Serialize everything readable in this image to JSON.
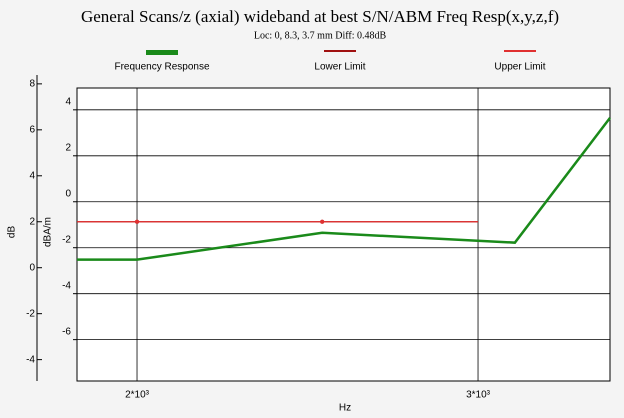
{
  "chart_data": {
    "type": "line",
    "title": "General Scans/z (axial) wideband at best S/N/ABM Freq Resp(x,y,z,f)",
    "subtitle": "Loc: 0, 8.3, 3.7 mm Diff: 0.48dB",
    "xlabel": "Hz",
    "ylabel": "dBA/m",
    "y2label": "dB",
    "xlim": [
      1824,
      3387
    ],
    "xticks": [
      {
        "value": 2000,
        "label": "2*10³"
      },
      {
        "value": 3000,
        "label": "3*10³"
      }
    ],
    "ylim": [
      -7.8,
      4.95
    ],
    "yticks": [
      4,
      2,
      0,
      -2,
      -4,
      -6
    ],
    "y2lim": [
      -4.93,
      7.82
    ],
    "y2ticks": [
      8,
      6,
      4,
      2,
      0,
      -2,
      -4
    ],
    "grid": true,
    "series": [
      {
        "name": "Frequency Response",
        "color": "#1a8a1a",
        "x": [
          1824,
          2000,
          2543,
          3108,
          3387
        ],
        "values": [
          -2.52,
          -2.52,
          -1.35,
          -1.78,
          3.65
        ]
      },
      {
        "name": "Lower Limit",
        "color": "#a01010",
        "x": [
          1824,
          2000,
          2543,
          3000
        ],
        "values": [
          -0.87,
          -0.87,
          -0.87,
          -0.87
        ]
      },
      {
        "name": "Upper Limit",
        "color": "#e03030",
        "x": [
          1824,
          2000,
          2543,
          3000
        ],
        "values": [
          -0.87,
          -0.87,
          -0.87,
          -0.87
        ]
      }
    ]
  }
}
